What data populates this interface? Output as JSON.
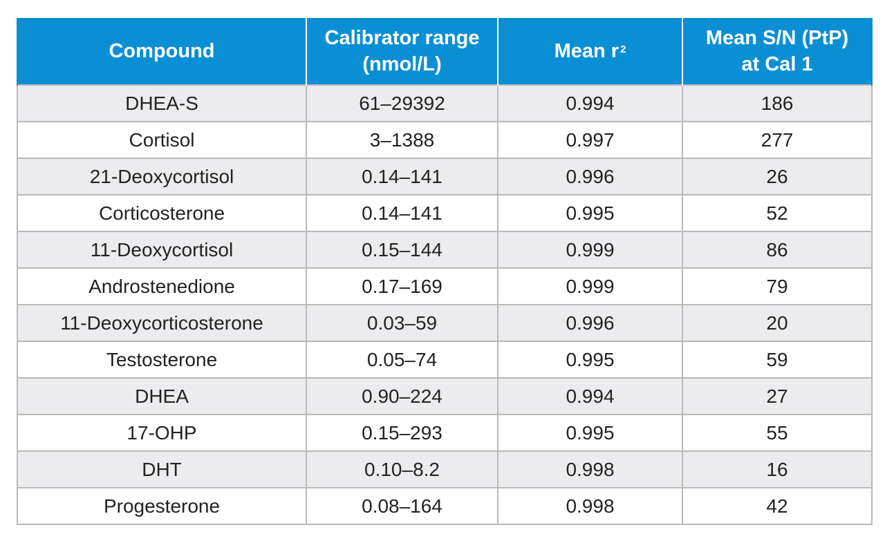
{
  "table": {
    "headers": {
      "compound": "Compound",
      "calibrator_line1": "Calibrator range",
      "calibrator_line2": "(nmol/L)",
      "mean_r": "Mean r",
      "mean_r_sup": "2",
      "sn_line1": "Mean S/N (PtP)",
      "sn_line2": "at Cal 1"
    },
    "rows": [
      {
        "compound": "DHEA-S",
        "range": "61–29392",
        "r2": "0.994",
        "sn": "186"
      },
      {
        "compound": "Cortisol",
        "range": "3–1388",
        "r2": "0.997",
        "sn": "277"
      },
      {
        "compound": "21-Deoxycortisol",
        "range": "0.14–141",
        "r2": "0.996",
        "sn": "26"
      },
      {
        "compound": "Corticosterone",
        "range": "0.14–141",
        "r2": "0.995",
        "sn": "52"
      },
      {
        "compound": "11-Deoxycortisol",
        "range": "0.15–144",
        "r2": "0.999",
        "sn": "86"
      },
      {
        "compound": "Androstenedione",
        "range": "0.17–169",
        "r2": "0.999",
        "sn": "79"
      },
      {
        "compound": "11-Deoxycorticosterone",
        "range": "0.03–59",
        "r2": "0.996",
        "sn": "20"
      },
      {
        "compound": "Testosterone",
        "range": "0.05–74",
        "r2": "0.995",
        "sn": "59"
      },
      {
        "compound": "DHEA",
        "range": "0.90–224",
        "r2": "0.994",
        "sn": "27"
      },
      {
        "compound": "17-OHP",
        "range": "0.15–293",
        "r2": "0.995",
        "sn": "55"
      },
      {
        "compound": "DHT",
        "range": "0.10–8.2",
        "r2": "0.998",
        "sn": "16"
      },
      {
        "compound": "Progesterone",
        "range": "0.08–164",
        "r2": "0.998",
        "sn": "42"
      }
    ]
  },
  "colors": {
    "header_bg": "#0b8fd4",
    "header_text": "#ffffff",
    "row_alt_bg": "#ececef",
    "row_bg": "#ffffff",
    "grid": "#b9b9b9"
  }
}
